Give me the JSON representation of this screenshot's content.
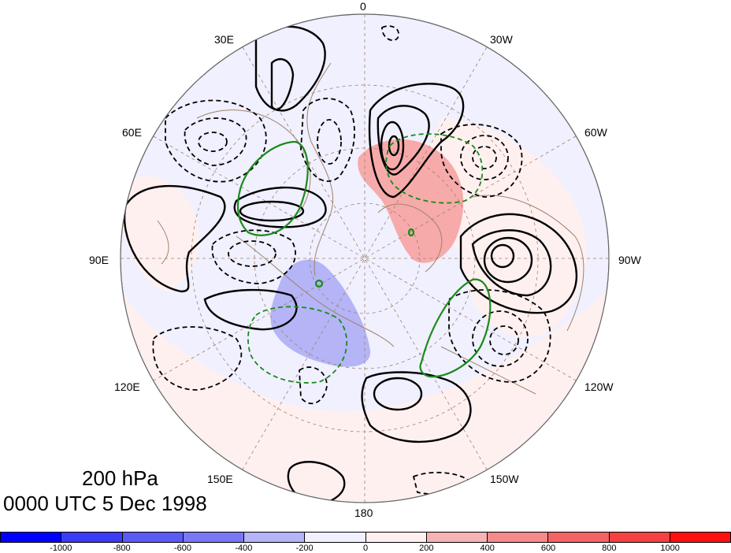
{
  "map": {
    "level": "200 hPa",
    "time": "0000 UTC 5 Dec 1998",
    "projection": "north-polar-stereographic",
    "longitude_labels": [
      "0",
      "30W",
      "60W",
      "90W",
      "120W",
      "150W",
      "180",
      "150E",
      "120E",
      "90E",
      "60E",
      "30E"
    ],
    "fill_colors": {
      "ocean_background": "#f0f0ff",
      "light_pink": "#fff0f0",
      "pink_anomaly": "#f7aaaa",
      "blue_anomaly": "#b4b4f7",
      "coastline": "#a0826a",
      "contour_positive": "#000000",
      "contour_negative": "#000000",
      "contour_green": "#1a8a1a"
    }
  },
  "colorbar": {
    "colors": [
      "#0000ff",
      "#3c3cf5",
      "#5a5af5",
      "#7878f5",
      "#b4b4f7",
      "#f0f0ff",
      "#fff0f0",
      "#f7b4b4",
      "#f58a8a",
      "#f56464",
      "#f54141",
      "#ff1010"
    ],
    "tick_labels": [
      "-1000",
      "-800",
      "-600",
      "-400",
      "-200",
      "0",
      "200",
      "400",
      "600",
      "800",
      "1000"
    ]
  }
}
